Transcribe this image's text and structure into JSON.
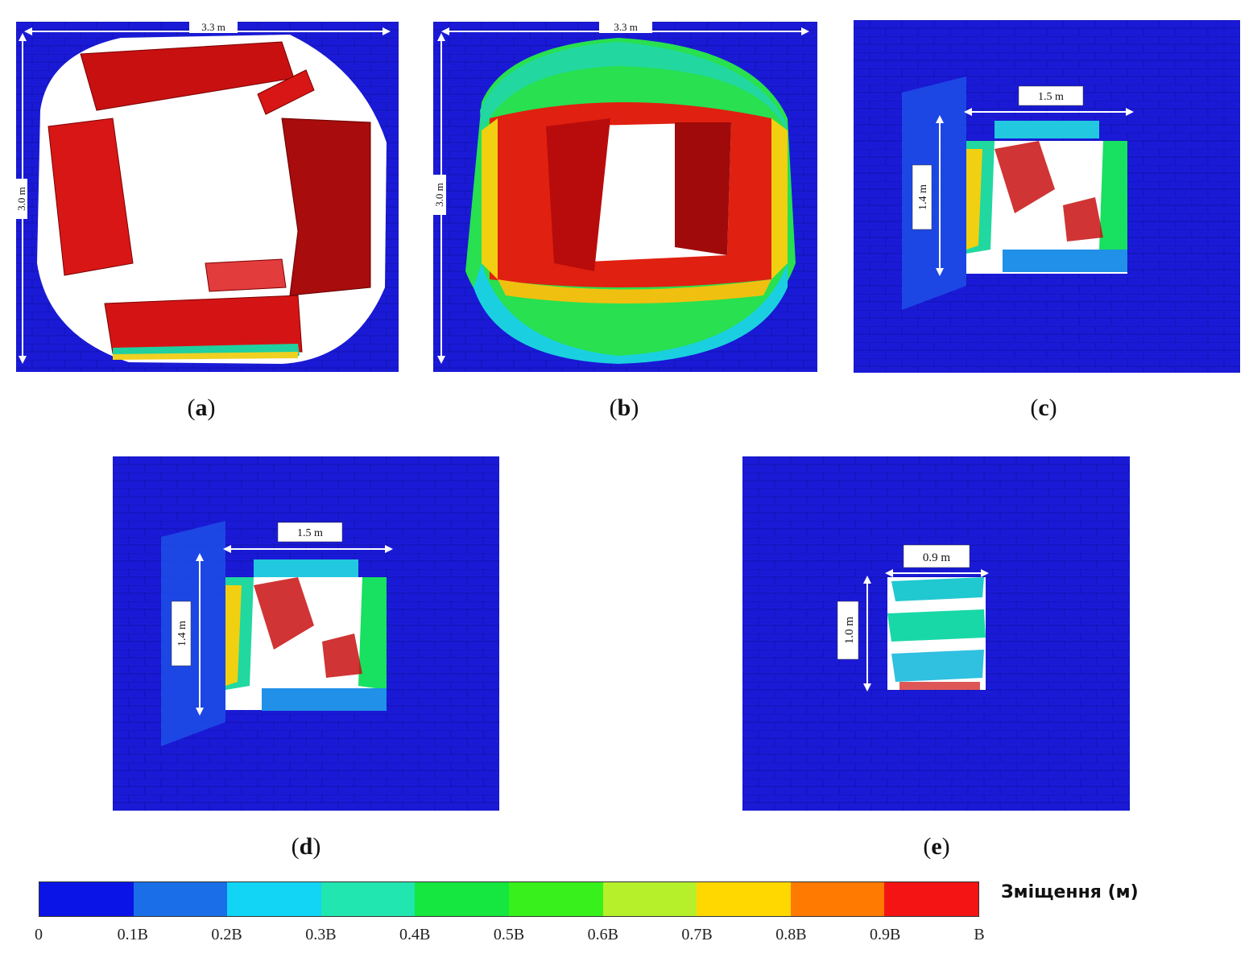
{
  "panels": {
    "a": {
      "caption": "a",
      "width_label": "3.3 m",
      "height_label": "3.0 m"
    },
    "b": {
      "caption": "b",
      "width_label": "3.3 m",
      "height_label": "3.0 m"
    },
    "c": {
      "caption": "c",
      "width_label": "1.5 m",
      "height_label": "1.4 m"
    },
    "d": {
      "caption": "d",
      "width_label": "1.5 m",
      "height_label": "1.4 m"
    },
    "e": {
      "caption": "e",
      "width_label": "0.9 m",
      "height_label": "1.0 m"
    }
  },
  "legend": {
    "title": "Зміщення (м)",
    "colors": [
      "#0a14e6",
      "#1a6ee8",
      "#12d4f4",
      "#22e6b0",
      "#16e640",
      "#38f01c",
      "#b6f02a",
      "#ffd800",
      "#ff7a00",
      "#f41414"
    ],
    "ticks": [
      "0",
      "0.1B",
      "0.2B",
      "0.3B",
      "0.4B",
      "0.5B",
      "0.6B",
      "0.7B",
      "0.8B",
      "0.9B",
      "B"
    ]
  }
}
